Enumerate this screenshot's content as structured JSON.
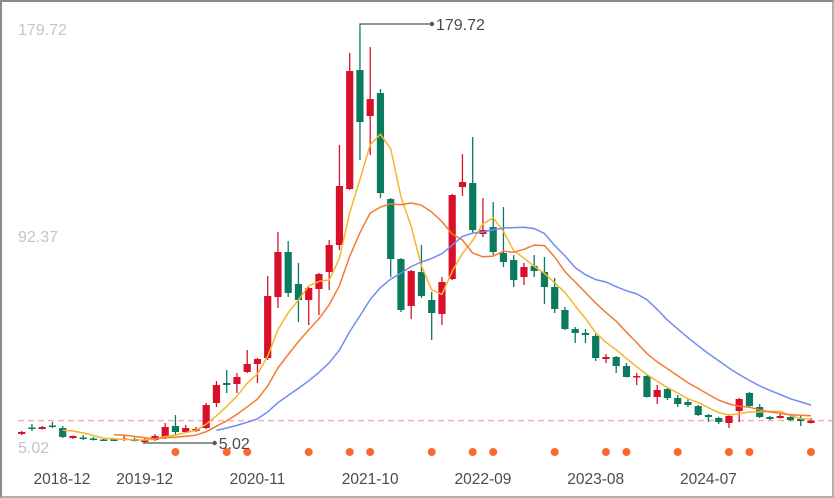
{
  "chart_data": {
    "type": "candlestick",
    "title": "",
    "xlabel": "",
    "ylabel": "",
    "ylim": [
      5.02,
      179.72
    ],
    "y_tick_labels": [
      "179.72",
      "92.37",
      "5.02"
    ],
    "x_tick_labels": [
      "2018-12",
      "2019-12",
      "2020-11",
      "2021-10",
      "2022-09",
      "2023-08",
      "2024-07"
    ],
    "grid": false,
    "up_color": "#d8102a",
    "down_color": "#0b7a5f",
    "months": [
      "2018-12",
      "2019-01",
      "2019-02",
      "2019-03",
      "2019-04",
      "2019-05",
      "2019-06",
      "2019-07",
      "2019-08",
      "2019-09",
      "2019-10",
      "2019-11",
      "2019-12",
      "2020-01",
      "2020-02",
      "2020-03",
      "2020-04",
      "2020-05",
      "2020-06",
      "2020-07",
      "2020-08",
      "2020-09",
      "2020-10",
      "2020-11",
      "2020-12",
      "2021-01",
      "2021-02",
      "2021-03",
      "2021-04",
      "2021-05",
      "2021-06",
      "2021-07",
      "2021-08",
      "2021-09",
      "2021-10",
      "2021-11",
      "2021-12",
      "2022-01",
      "2022-02",
      "2022-03",
      "2022-04",
      "2022-05",
      "2022-06",
      "2022-07",
      "2022-08",
      "2022-09",
      "2022-10",
      "2022-11",
      "2022-12",
      "2023-01",
      "2023-02",
      "2023-03",
      "2023-04",
      "2023-05",
      "2023-06",
      "2023-07",
      "2023-08",
      "2023-09",
      "2023-10",
      "2023-11",
      "2023-12",
      "2024-01",
      "2024-02",
      "2024-03",
      "2024-04",
      "2024-05",
      "2024-06",
      "2024-07",
      "2024-08",
      "2024-09",
      "2024-10",
      "2024-11",
      "2024-12",
      "2025-01",
      "2025-02",
      "2025-03",
      "2025-04",
      "2025-05"
    ],
    "ohlc_order": [
      "open",
      "high",
      "low",
      "close"
    ],
    "ohlc": [
      [
        8.8,
        10.06,
        8.38,
        9.64
      ],
      [
        11.52,
        12.99,
        10.06,
        11.1
      ],
      [
        10.89,
        12.15,
        10.68,
        11.73
      ],
      [
        12.36,
        13.83,
        11.31,
        11.94
      ],
      [
        11.31,
        12.15,
        7.12,
        7.54
      ],
      [
        7.12,
        8.17,
        6.7,
        7.96
      ],
      [
        7.33,
        8.38,
        6.28,
        6.91
      ],
      [
        6.91,
        7.54,
        6.07,
        6.49
      ],
      [
        6.49,
        7.12,
        5.86,
        6.07
      ],
      [
        6.49,
        6.9,
        5.86,
        6.28
      ],
      [
        6.28,
        7.96,
        5.86,
        6.91
      ],
      [
        6.7,
        7.33,
        5.65,
        5.86
      ],
      [
        5.44,
        6.91,
        5.02,
        6.28
      ],
      [
        6.28,
        8.8,
        5.86,
        7.96
      ],
      [
        7.12,
        13.41,
        6.7,
        11.73
      ],
      [
        12.15,
        16.77,
        8.38,
        9.64
      ],
      [
        9.64,
        12.57,
        9.22,
        11.31
      ],
      [
        10.06,
        11.73,
        9.64,
        10.89
      ],
      [
        11.31,
        21.8,
        10.89,
        20.96
      ],
      [
        21.8,
        31.04,
        20.13,
        29.36
      ],
      [
        30.2,
        35.65,
        26.0,
        29.36
      ],
      [
        29.78,
        34.39,
        26.0,
        32.71
      ],
      [
        34.81,
        44.04,
        34.39,
        38.17
      ],
      [
        38.17,
        40.69,
        30.2,
        40.27
      ],
      [
        40.69,
        75.09,
        39.85,
        66.7
      ],
      [
        66.28,
        93.56,
        61.67,
        85.16
      ],
      [
        85.16,
        89.78,
        66.28,
        67.96
      ],
      [
        71.74,
        80.55,
        55.79,
        65.02
      ],
      [
        65.02,
        70.48,
        54.53,
        70.06
      ],
      [
        69.64,
        76.35,
        58.73,
        75.93
      ],
      [
        76.77,
        90.2,
        69.22,
        88.1
      ],
      [
        88.1,
        130.06,
        86.0,
        112.86
      ],
      [
        111.6,
        168.66,
        111.18,
        161.11
      ],
      [
        161.53,
        179.72,
        123.77,
        139.71
      ],
      [
        142.23,
        171.18,
        125.87,
        149.36
      ],
      [
        151.88,
        153.56,
        107.82,
        109.92
      ],
      [
        107.4,
        107.8,
        74.67,
        82.23
      ],
      [
        82.23,
        82.6,
        59.99,
        60.83
      ],
      [
        62.51,
        77.6,
        57.05,
        77.19
      ],
      [
        76.77,
        88.1,
        65.86,
        66.7
      ],
      [
        65.02,
        68.38,
        48.24,
        59.57
      ],
      [
        59.15,
        74.67,
        54.53,
        72.58
      ],
      [
        73.83,
        109.5,
        73.42,
        109.08
      ],
      [
        112.44,
        126.29,
        108.66,
        114.54
      ],
      [
        114.12,
        133.42,
        93.14,
        94.39
      ],
      [
        92.72,
        107.82,
        91.46,
        94.39
      ],
      [
        95.65,
        106.14,
        83.9,
        85.16
      ],
      [
        84.74,
        104.05,
        78.87,
        80.97
      ],
      [
        81.81,
        83.9,
        70.48,
        73.42
      ],
      [
        74.67,
        80.55,
        71.32,
        78.87
      ],
      [
        79.29,
        83.9,
        74.67,
        77.19
      ],
      [
        76.77,
        83.06,
        63.34,
        70.48
      ],
      [
        70.48,
        74.25,
        59.57,
        61.25
      ],
      [
        60.83,
        62.09,
        52.43,
        52.85
      ],
      [
        52.85,
        53.69,
        46.98,
        51.18
      ],
      [
        51.18,
        52.85,
        46.98,
        50.34
      ],
      [
        49.92,
        50.76,
        39.43,
        40.69
      ],
      [
        40.27,
        42.36,
        38.59,
        41.11
      ],
      [
        41.11,
        41.53,
        34.39,
        37.33
      ],
      [
        37.33,
        38.59,
        32.5,
        32.71
      ],
      [
        32.71,
        34.39,
        29.36,
        33.13
      ],
      [
        33.13,
        34.0,
        24.1,
        24.32
      ],
      [
        24.32,
        29.36,
        21.38,
        27.26
      ],
      [
        27.68,
        28.52,
        23.06,
        23.9
      ],
      [
        23.9,
        25.16,
        20.13,
        21.38
      ],
      [
        22.22,
        23.48,
        20.13,
        20.96
      ],
      [
        20.54,
        20.96,
        16.35,
        16.77
      ],
      [
        16.77,
        17.19,
        13.83,
        15.93
      ],
      [
        15.51,
        15.93,
        12.99,
        13.83
      ],
      [
        13.41,
        16.77,
        11.31,
        16.35
      ],
      [
        18.45,
        23.9,
        13.83,
        23.48
      ],
      [
        26.0,
        26.42,
        20.13,
        20.54
      ],
      [
        20.13,
        21.38,
        15.51,
        15.93
      ],
      [
        15.93,
        16.35,
        14.67,
        15.09
      ],
      [
        15.51,
        17.61,
        15.3,
        16.35
      ],
      [
        15.93,
        16.35,
        14.25,
        14.67
      ],
      [
        15.09,
        16.35,
        12.15,
        14.25
      ],
      [
        13.41,
        15.51,
        13.2,
        14.4
      ]
    ],
    "moving_averages": [
      {
        "period": 5,
        "color": "#f6b52c"
      },
      {
        "period": 10,
        "color": "#f47a32"
      },
      {
        "period": 20,
        "color": "#6f8cf4"
      }
    ],
    "max_annotation": {
      "label": "179.72",
      "month": "2021-09"
    },
    "min_annotation": {
      "label": "5.02",
      "month": "2019-12"
    },
    "last_price_line": {
      "value": 14.4,
      "color": "#f3b3b3"
    },
    "event_markers": {
      "color": "#f9692f",
      "months": [
        "2020-03",
        "2020-08",
        "2020-10",
        "2021-04",
        "2021-08",
        "2021-10",
        "2022-04",
        "2022-08",
        "2022-10",
        "2023-04",
        "2023-09",
        "2023-11",
        "2024-04",
        "2024-09",
        "2024-11",
        "2025-05"
      ]
    }
  }
}
